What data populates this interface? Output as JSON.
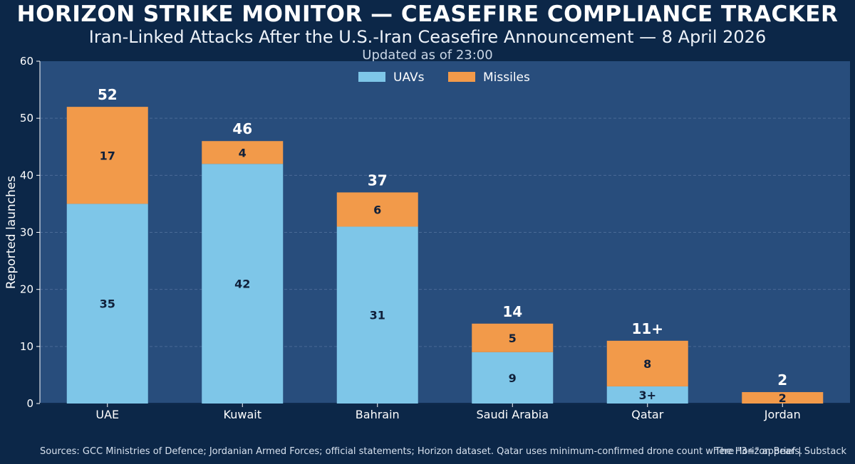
{
  "header": {
    "title": "HORIZON STRIKE MONITOR — CEASEFIRE COMPLIANCE TRACKER",
    "subtitle": "Iran-Linked Attacks After the U.S.-Iran Ceasefire Announcement — 8 April 2026",
    "updated": "Updated as of 23:00"
  },
  "footer": {
    "sources": "Sources: GCC Ministries of Defence; Jordanian Armed Forces; official statements; Horizon dataset. Qatar uses minimum-confirmed drone count where \"3+\" appears.",
    "credit": "The Horizon Brief | Substack"
  },
  "colors": {
    "page_bg": "#0c2748",
    "plot_bg": "#284d7c",
    "uavs": "#7ec6e8",
    "missiles": "#f29a4a",
    "grid": "#4a6a96"
  },
  "chart_data": {
    "type": "bar",
    "stacked": true,
    "categories": [
      "UAE",
      "Kuwait",
      "Bahrain",
      "Saudi Arabia",
      "Qatar",
      "Jordan"
    ],
    "series": [
      {
        "name": "UAVs",
        "values": [
          35,
          42,
          31,
          9,
          3,
          0
        ],
        "labels": [
          "35",
          "42",
          "31",
          "9",
          "3+",
          ""
        ]
      },
      {
        "name": "Missiles",
        "values": [
          17,
          4,
          6,
          5,
          8,
          2
        ],
        "labels": [
          "17",
          "4",
          "6",
          "5",
          "8",
          "2"
        ]
      }
    ],
    "totals": [
      "52",
      "46",
      "37",
      "14",
      "11+",
      "2"
    ],
    "title": "HORIZON STRIKE MONITOR — CEASEFIRE COMPLIANCE TRACKER",
    "xlabel": "",
    "ylabel": "Reported launches",
    "ylim": [
      0,
      60
    ],
    "yticks": [
      0,
      10,
      20,
      30,
      40,
      50,
      60
    ],
    "grid": true,
    "legend": "top-center"
  }
}
